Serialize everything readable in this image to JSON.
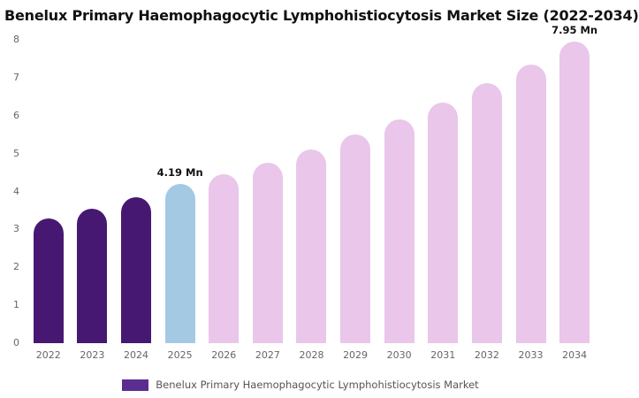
{
  "page": {
    "title": "Benelux Primary Haemophagocytic Lymphohistiocytosis Market Size (2022-2034)"
  },
  "legend": {
    "label": "Benelux Primary Haemophagocytic Lymphohistiocytosis Market",
    "swatch_color": "#5c2d91"
  },
  "colors": {
    "historical_bar": "#471872",
    "base_year_bar": "#a4c9e3",
    "forecast_bar": "#e9c6ea",
    "title_text": "#111111",
    "axis_text": "#666666"
  },
  "chart_data": {
    "type": "bar",
    "title": "Benelux Primary Haemophagocytic Lymphohistiocytosis Market Size (2022-2034)",
    "xlabel": "",
    "ylabel": "",
    "ylim": [
      0,
      8
    ],
    "yticks": [
      0,
      1,
      2,
      3,
      4,
      5,
      6,
      7,
      8
    ],
    "grid": false,
    "legend_position": "bottom",
    "categories": [
      "2022",
      "2023",
      "2024",
      "2025",
      "2026",
      "2027",
      "2028",
      "2029",
      "2030",
      "2031",
      "2032",
      "2033",
      "2034"
    ],
    "values": [
      3.3,
      3.55,
      3.85,
      4.19,
      4.45,
      4.75,
      5.1,
      5.5,
      5.9,
      6.35,
      6.85,
      7.35,
      7.95
    ],
    "bar_colors": [
      "#471872",
      "#471872",
      "#471872",
      "#a4c9e3",
      "#e9c6ea",
      "#e9c6ea",
      "#e9c6ea",
      "#e9c6ea",
      "#e9c6ea",
      "#e9c6ea",
      "#e9c6ea",
      "#e9c6ea",
      "#e9c6ea"
    ],
    "annotations": [
      {
        "category": "2025",
        "text": "4.19 Mn"
      },
      {
        "category": "2034",
        "text": "7.95 Mn"
      }
    ]
  }
}
